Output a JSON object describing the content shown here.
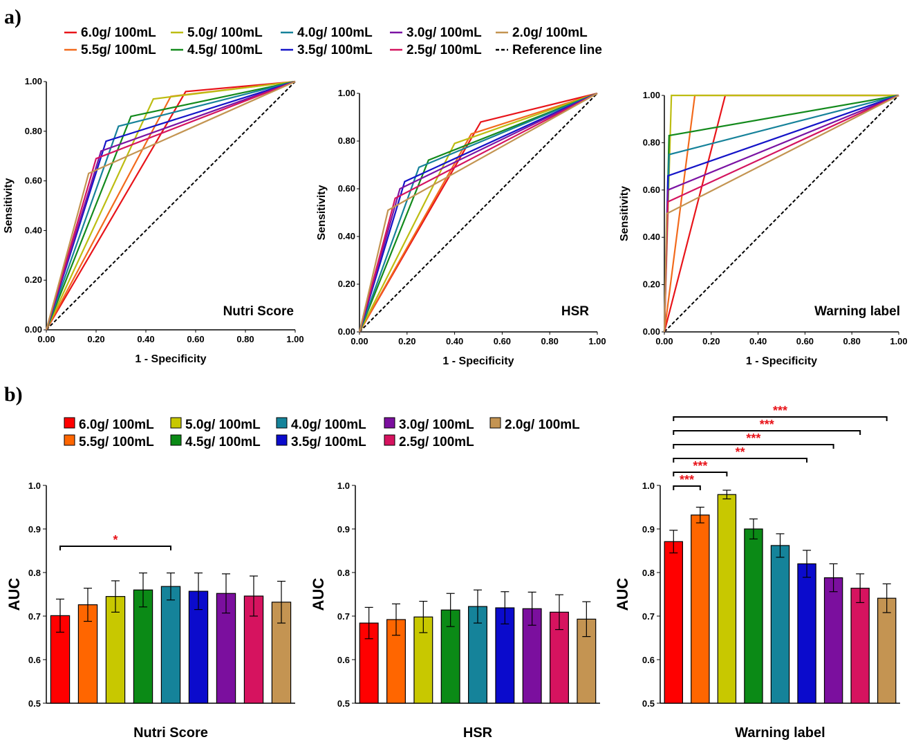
{
  "panel_a_label": "a)",
  "panel_b_label": "b)",
  "legend_a": [
    {
      "label": "6.0g/ 100mL",
      "color": "#e8141a"
    },
    {
      "label": "5.0g/ 100mL",
      "color": "#bdbd12"
    },
    {
      "label": "4.0g/ 100mL",
      "color": "#16829a"
    },
    {
      "label": "3.0g/ 100mL",
      "color": "#7b13a3"
    },
    {
      "label": "2.0g/ 100mL",
      "color": "#c39451"
    },
    {
      "label": "5.5g/ 100mL",
      "color": "#f26a1c"
    },
    {
      "label": "4.5g/ 100mL",
      "color": "#138a1c"
    },
    {
      "label": "3.5g/ 100mL",
      "color": "#1414c8"
    },
    {
      "label": "2.5g/ 100mL",
      "color": "#d4145f"
    },
    {
      "label": "Reference line",
      "color": "#000000"
    }
  ],
  "legend_b": [
    {
      "label": "6.0g/ 100mL",
      "color": "#ff0000"
    },
    {
      "label": "5.0g/ 100mL",
      "color": "#c8c800"
    },
    {
      "label": "4.0g/ 100mL",
      "color": "#15839a"
    },
    {
      "label": "3.0g/ 100mL",
      "color": "#7b0f9e"
    },
    {
      "label": "2.0g/ 100mL",
      "color": "#c49452"
    },
    {
      "label": "5.5g/ 100mL",
      "color": "#ff6600"
    },
    {
      "label": "4.5g/ 100mL",
      "color": "#0b8a16"
    },
    {
      "label": "3.5g/ 100mL",
      "color": "#0b0bcc"
    },
    {
      "label": "2.5g/ 100mL",
      "color": "#d6135f"
    }
  ],
  "chart_data": [
    {
      "type": "line",
      "name": "roc-nutri-score",
      "plot_label": "Nutri Score",
      "xlabel": "1 - Specificity",
      "ylabel": "Sensitivity",
      "xlim": [
        0,
        1
      ],
      "ylim": [
        0,
        1
      ],
      "xticks": [
        "0.00",
        "0.20",
        "0.40",
        "0.60",
        "0.80",
        "1.00"
      ],
      "yticks": [
        "0.00",
        "0.20",
        "0.40",
        "0.60",
        "0.80",
        "1.00"
      ],
      "reference_line": [
        [
          0,
          0
        ],
        [
          1,
          1
        ]
      ],
      "series": [
        {
          "name": "6.0g/ 100mL",
          "points": [
            [
              0,
              0
            ],
            [
              0.56,
              0.96
            ],
            [
              1,
              1
            ]
          ]
        },
        {
          "name": "5.5g/ 100mL",
          "points": [
            [
              0,
              0
            ],
            [
              0.5,
              0.94
            ],
            [
              1,
              1
            ]
          ]
        },
        {
          "name": "5.0g/ 100mL",
          "points": [
            [
              0,
              0
            ],
            [
              0.43,
              0.93
            ],
            [
              1,
              1
            ]
          ]
        },
        {
          "name": "4.5g/ 100mL",
          "points": [
            [
              0,
              0
            ],
            [
              0.34,
              0.86
            ],
            [
              1,
              1
            ]
          ]
        },
        {
          "name": "4.0g/ 100mL",
          "points": [
            [
              0,
              0
            ],
            [
              0.29,
              0.82
            ],
            [
              1,
              1
            ]
          ]
        },
        {
          "name": "3.5g/ 100mL",
          "points": [
            [
              0,
              0
            ],
            [
              0.24,
              0.76
            ],
            [
              1,
              1
            ]
          ]
        },
        {
          "name": "3.0g/ 100mL",
          "points": [
            [
              0,
              0
            ],
            [
              0.22,
              0.72
            ],
            [
              1,
              1
            ]
          ]
        },
        {
          "name": "2.5g/ 100mL",
          "points": [
            [
              0,
              0
            ],
            [
              0.2,
              0.69
            ],
            [
              1,
              1
            ]
          ]
        },
        {
          "name": "2.0g/ 100mL",
          "points": [
            [
              0,
              0
            ],
            [
              0.17,
              0.63
            ],
            [
              1,
              1
            ]
          ]
        }
      ]
    },
    {
      "type": "line",
      "name": "roc-hsr",
      "plot_label": "HSR",
      "xlabel": "1 - Specificity",
      "ylabel": "Sensitivity",
      "xlim": [
        0,
        1
      ],
      "ylim": [
        0,
        1
      ],
      "xticks": [
        "0.00",
        "0.20",
        "0.40",
        "0.60",
        "0.80",
        "1.00"
      ],
      "yticks": [
        "0.00",
        "0.20",
        "0.40",
        "0.60",
        "0.80",
        "1.00"
      ],
      "reference_line": [
        [
          0,
          0
        ],
        [
          1,
          1
        ]
      ],
      "series": [
        {
          "name": "6.0g/ 100mL",
          "points": [
            [
              0,
              0
            ],
            [
              0.51,
              0.88
            ],
            [
              1,
              1
            ]
          ]
        },
        {
          "name": "5.5g/ 100mL",
          "points": [
            [
              0,
              0
            ],
            [
              0.47,
              0.83
            ],
            [
              1,
              1
            ]
          ]
        },
        {
          "name": "5.0g/ 100mL",
          "points": [
            [
              0,
              0
            ],
            [
              0.4,
              0.79
            ],
            [
              1,
              1
            ]
          ]
        },
        {
          "name": "4.5g/ 100mL",
          "points": [
            [
              0,
              0
            ],
            [
              0.29,
              0.72
            ],
            [
              1,
              1
            ]
          ]
        },
        {
          "name": "4.0g/ 100mL",
          "points": [
            [
              0,
              0
            ],
            [
              0.25,
              0.69
            ],
            [
              1,
              1
            ]
          ]
        },
        {
          "name": "3.5g/ 100mL",
          "points": [
            [
              0,
              0
            ],
            [
              0.19,
              0.63
            ],
            [
              1,
              1
            ]
          ]
        },
        {
          "name": "3.0g/ 100mL",
          "points": [
            [
              0,
              0
            ],
            [
              0.17,
              0.6
            ],
            [
              1,
              1
            ]
          ]
        },
        {
          "name": "2.5g/ 100mL",
          "points": [
            [
              0,
              0
            ],
            [
              0.15,
              0.56
            ],
            [
              1,
              1
            ]
          ]
        },
        {
          "name": "2.0g/ 100mL",
          "points": [
            [
              0,
              0
            ],
            [
              0.12,
              0.51
            ],
            [
              1,
              1
            ]
          ]
        }
      ]
    },
    {
      "type": "line",
      "name": "roc-warning-label",
      "plot_label": "Warning label",
      "xlabel": "1 - Specificity",
      "ylabel": "Sensitivity",
      "xlim": [
        0,
        1
      ],
      "ylim": [
        0,
        1
      ],
      "xticks": [
        "0.00",
        "0.20",
        "0.40",
        "0.60",
        "0.80",
        "1.00"
      ],
      "yticks": [
        "0.00",
        "0.20",
        "0.40",
        "0.60",
        "0.80",
        "1.00"
      ],
      "reference_line": [
        [
          0,
          0
        ],
        [
          1,
          1
        ]
      ],
      "series": [
        {
          "name": "6.0g/ 100mL",
          "points": [
            [
              0,
              0
            ],
            [
              0.26,
              1.0
            ],
            [
              1,
              1
            ]
          ]
        },
        {
          "name": "5.5g/ 100mL",
          "points": [
            [
              0,
              0
            ],
            [
              0.13,
              1.0
            ],
            [
              1,
              1
            ]
          ]
        },
        {
          "name": "5.0g/ 100mL",
          "points": [
            [
              0,
              0
            ],
            [
              0.03,
              1.0
            ],
            [
              1,
              1
            ]
          ]
        },
        {
          "name": "4.5g/ 100mL",
          "points": [
            [
              0,
              0
            ],
            [
              0.02,
              0.83
            ],
            [
              1,
              1
            ]
          ]
        },
        {
          "name": "4.0g/ 100mL",
          "points": [
            [
              0,
              0
            ],
            [
              0.02,
              0.75
            ],
            [
              1,
              1
            ]
          ]
        },
        {
          "name": "3.5g/ 100mL",
          "points": [
            [
              0,
              0
            ],
            [
              0.015,
              0.66
            ],
            [
              1,
              1
            ]
          ]
        },
        {
          "name": "3.0g/ 100mL",
          "points": [
            [
              0,
              0
            ],
            [
              0.015,
              0.6
            ],
            [
              1,
              1
            ]
          ]
        },
        {
          "name": "2.5g/ 100mL",
          "points": [
            [
              0,
              0
            ],
            [
              0.015,
              0.55
            ],
            [
              1,
              1
            ]
          ]
        },
        {
          "name": "2.0g/ 100mL",
          "points": [
            [
              0,
              0
            ],
            [
              0.01,
              0.5
            ],
            [
              1,
              1
            ]
          ]
        }
      ]
    },
    {
      "type": "bar",
      "name": "auc-nutri-score",
      "xlabel": "Nutri Score",
      "ylabel": "AUC",
      "ylim": [
        0.5,
        1.0
      ],
      "yticks": [
        "0.5",
        "0.6",
        "0.7",
        "0.8",
        "0.9",
        "1.0"
      ],
      "categories": [
        "6.0g/ 100mL",
        "5.5g/ 100mL",
        "5.0g/ 100mL",
        "4.5g/ 100mL",
        "4.0g/ 100mL",
        "3.5g/ 100mL",
        "3.0g/ 100mL",
        "2.5g/ 100mL",
        "2.0g/ 100mL"
      ],
      "values": [
        0.701,
        0.726,
        0.745,
        0.76,
        0.768,
        0.757,
        0.752,
        0.746,
        0.732
      ],
      "errors": [
        0.038,
        0.038,
        0.036,
        0.039,
        0.031,
        0.042,
        0.045,
        0.046,
        0.048
      ],
      "significance": [
        {
          "from": 0,
          "to": 4,
          "label": "*"
        }
      ]
    },
    {
      "type": "bar",
      "name": "auc-hsr",
      "xlabel": "HSR",
      "ylabel": "AUC",
      "ylim": [
        0.5,
        1.0
      ],
      "yticks": [
        "0.5",
        "0.6",
        "0.7",
        "0.8",
        "0.9",
        "1.0"
      ],
      "categories": [
        "6.0g/ 100mL",
        "5.5g/ 100mL",
        "5.0g/ 100mL",
        "4.5g/ 100mL",
        "4.0g/ 100mL",
        "3.5g/ 100mL",
        "3.0g/ 100mL",
        "2.5g/ 100mL",
        "2.0g/ 100mL"
      ],
      "values": [
        0.684,
        0.692,
        0.698,
        0.714,
        0.722,
        0.719,
        0.717,
        0.709,
        0.693
      ],
      "errors": [
        0.036,
        0.036,
        0.036,
        0.038,
        0.038,
        0.037,
        0.038,
        0.04,
        0.04
      ],
      "significance": []
    },
    {
      "type": "bar",
      "name": "auc-warning-label",
      "xlabel": "Warning label",
      "ylabel": "AUC",
      "ylim": [
        0.5,
        1.0
      ],
      "yticks": [
        "0.5",
        "0.6",
        "0.7",
        "0.8",
        "0.9",
        "1.0"
      ],
      "categories": [
        "6.0g/ 100mL",
        "5.5g/ 100mL",
        "5.0g/ 100mL",
        "4.5g/ 100mL",
        "4.0g/ 100mL",
        "3.5g/ 100mL",
        "3.0g/ 100mL",
        "2.5g/ 100mL",
        "2.0g/ 100mL"
      ],
      "values": [
        0.871,
        0.932,
        0.979,
        0.9,
        0.862,
        0.82,
        0.788,
        0.764,
        0.741
      ],
      "errors": [
        0.026,
        0.018,
        0.01,
        0.023,
        0.027,
        0.031,
        0.032,
        0.033,
        0.033
      ],
      "significance": [
        {
          "from": 0,
          "to": 1,
          "label": "***"
        },
        {
          "from": 0,
          "to": 2,
          "label": "***"
        },
        {
          "from": 0,
          "to": 5,
          "label": "**"
        },
        {
          "from": 0,
          "to": 6,
          "label": "***"
        },
        {
          "from": 0,
          "to": 7,
          "label": "***"
        },
        {
          "from": 0,
          "to": 8,
          "label": "***"
        }
      ]
    }
  ]
}
